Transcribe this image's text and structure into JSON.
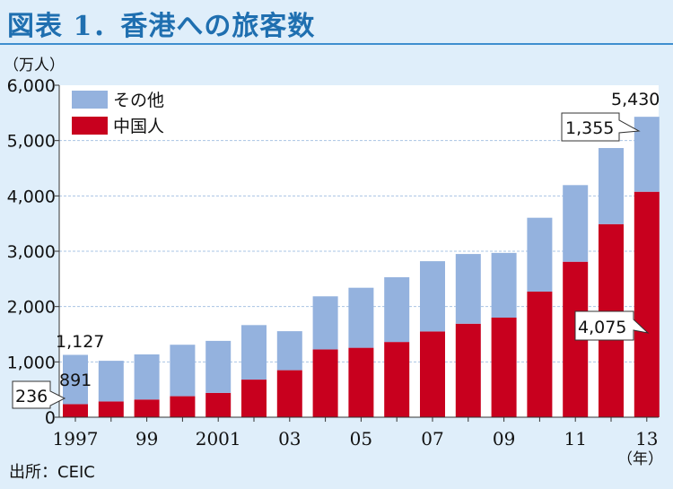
{
  "title": "図表 1．香港への旅客数",
  "source": "出所：CEIC",
  "chart_data": {
    "type": "bar",
    "stacked": true,
    "title": "図表 1．香港への旅客数",
    "yunit": "（万人）",
    "xunit": "（年）",
    "ylim": [
      0,
      6000
    ],
    "yticks": [
      "0",
      "1,000",
      "2,000",
      "3,000",
      "4,000",
      "5,000",
      "6,000"
    ],
    "yticks_values": [
      0,
      1000,
      2000,
      3000,
      4000,
      5000,
      6000
    ],
    "categories": [
      "1997",
      "1998",
      "1999",
      "2000",
      "2001",
      "2002",
      "2003",
      "2004",
      "2005",
      "2006",
      "2007",
      "2008",
      "2009",
      "2010",
      "2011",
      "2012",
      "2013"
    ],
    "xtick_labels": [
      "1997",
      "",
      "99",
      "",
      "2001",
      "",
      "03",
      "",
      "05",
      "",
      "07",
      "",
      "09",
      "",
      "11",
      "",
      "13"
    ],
    "series": [
      {
        "name": "中国人",
        "color": "#c8001e",
        "values": [
          236,
          285,
          320,
          380,
          440,
          680,
          850,
          1225,
          1255,
          1360,
          1550,
          1690,
          1800,
          2270,
          2810,
          3490,
          4075
        ]
      },
      {
        "name": "その他",
        "color": "#94b2de",
        "values": [
          891,
          735,
          815,
          930,
          940,
          985,
          705,
          960,
          1085,
          1170,
          1270,
          1260,
          1170,
          1335,
          1385,
          1375,
          1355
        ]
      }
    ],
    "legend": [
      "その他",
      "中国人"
    ],
    "legend_position": "top-left",
    "grid": true,
    "data_labels": {
      "total_first": "1,127",
      "other_first": "891",
      "china_first": "236",
      "total_last": "5,430",
      "other_last": "1,355",
      "china_last": "4,075"
    }
  }
}
